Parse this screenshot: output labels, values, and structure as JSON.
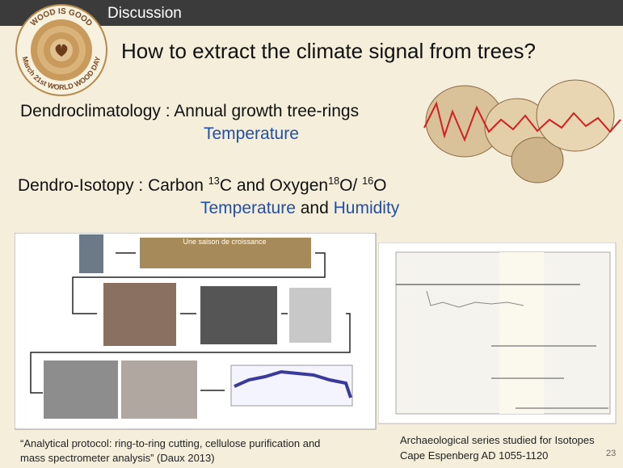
{
  "header": {
    "section": "Discussion"
  },
  "logo": {
    "top": "WOOD IS GOOD",
    "bottom": "March 21st WORLD WOOD DAY"
  },
  "title": "How to extract the climate signal from trees?",
  "lines": [
    {
      "label": "Dendroclimatology :",
      "text": "Annual growth tree-rings",
      "highlight": "Temperature"
    },
    {
      "parts": [
        "Dendro-Isotopy : Carbon ",
        "13",
        "C and Oxygen",
        "18",
        "O/ ",
        "16",
        "O"
      ],
      "highlight": [
        "Temperature",
        " and ",
        "Humidity"
      ]
    }
  ],
  "protocol": {
    "photo_label": "Une saison de croissance",
    "caption": [
      "“Analytical protocol: ring-to-ring cutting, cellulose purification and",
      "mass spectrometer analysis” (Daux 2013)"
    ]
  },
  "series": {
    "caption": [
      "Archaeological series studied for Isotopes",
      "Cape Espenberg AD 1055-1120"
    ]
  },
  "page_number": "23"
}
